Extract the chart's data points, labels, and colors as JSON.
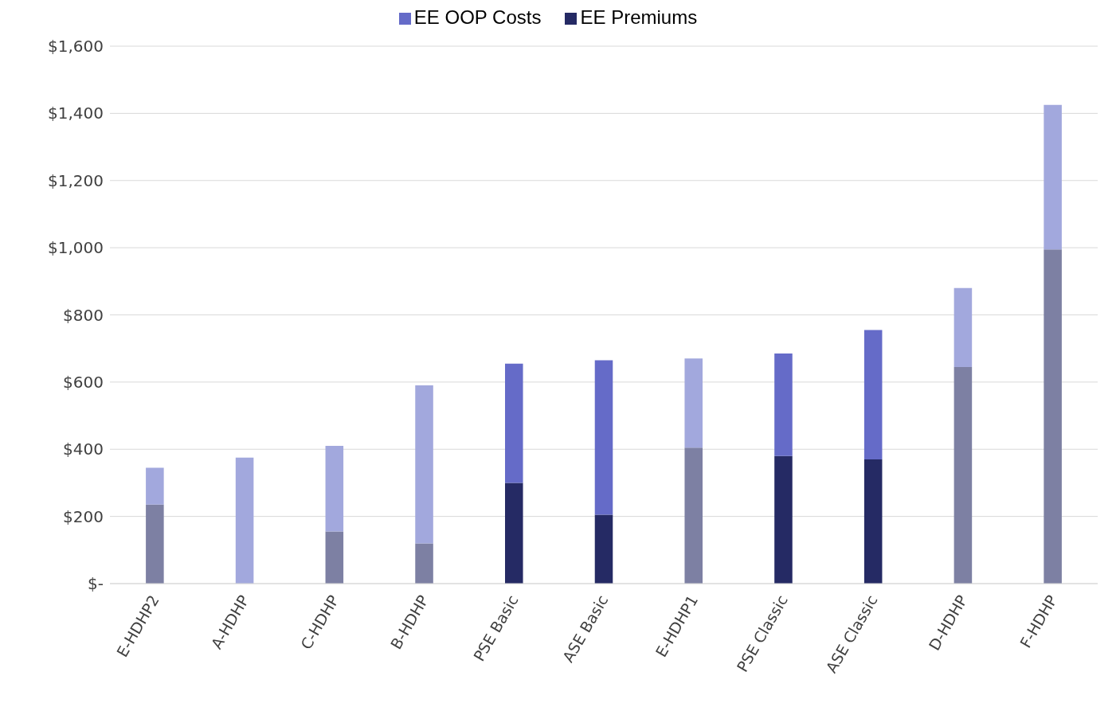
{
  "chart_data": {
    "type": "bar",
    "stacked": true,
    "categories": [
      "E-HDHP2",
      "A-HDHP",
      "C-HDHP",
      "B-HDHP",
      "PSE Basic",
      "ASE Basic",
      "E-HDHP1",
      "PSE Classic",
      "ASE Classic",
      "D-HDHP",
      "F-HDHP"
    ],
    "series": [
      {
        "name": "EE Premiums",
        "color": "#252a64",
        "colors": [
          "#7d80a3",
          "#7d80a3",
          "#7d80a3",
          "#7d80a3",
          "#252a64",
          "#252a64",
          "#7d80a3",
          "#252a64",
          "#252a64",
          "#7d80a3",
          "#7d80a3"
        ],
        "values": [
          235,
          0,
          155,
          120,
          300,
          205,
          405,
          380,
          370,
          645,
          995
        ]
      },
      {
        "name": "EE OOP Costs",
        "color": "#656bc8",
        "colors": [
          "#a2a8dd",
          "#a2a8dd",
          "#a2a8dd",
          "#a2a8dd",
          "#656bc8",
          "#656bc8",
          "#a2a8dd",
          "#656bc8",
          "#656bc8",
          "#a2a8dd",
          "#a2a8dd"
        ],
        "values": [
          110,
          375,
          255,
          470,
          355,
          460,
          265,
          305,
          385,
          235,
          430
        ]
      }
    ],
    "ylim": [
      0,
      1600
    ],
    "yticks": [
      {
        "value": 0,
        "label": "$-"
      },
      {
        "value": 200,
        "label": "$200"
      },
      {
        "value": 400,
        "label": "$400"
      },
      {
        "value": 600,
        "label": "$600"
      },
      {
        "value": 800,
        "label": "$800"
      },
      {
        "value": 1000,
        "label": "$1,000"
      },
      {
        "value": 1200,
        "label": "$1,200"
      },
      {
        "value": 1400,
        "label": "$1,400"
      },
      {
        "value": 1600,
        "label": "$1,600"
      }
    ],
    "grid": "y",
    "legend": "top"
  }
}
